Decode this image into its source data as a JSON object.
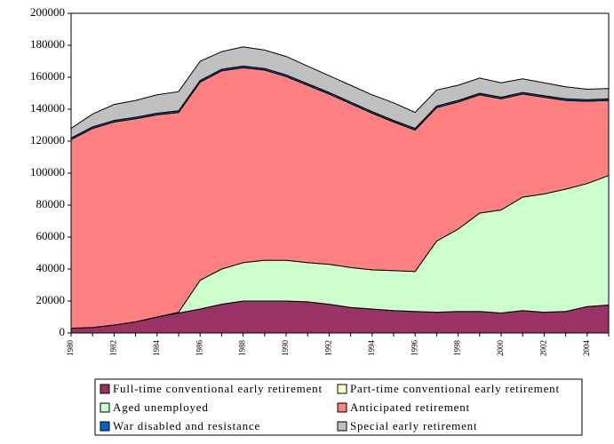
{
  "chart_data": {
    "type": "stacked_area",
    "categories": [
      "1980",
      null,
      "1982",
      null,
      "1984",
      null,
      "1986",
      null,
      "1988",
      null,
      "1990",
      null,
      "1992",
      null,
      "1994",
      null,
      "1996",
      null,
      "1998",
      null,
      "2000",
      null,
      "2002",
      null,
      "2004",
      null
    ],
    "series": [
      {
        "name": "Full-time conventional early retirement",
        "color": "#993366",
        "values": [
          3000,
          3500,
          5000,
          7000,
          10000,
          12500,
          15000,
          18000,
          20000,
          20000,
          20000,
          19500,
          18000,
          16000,
          15000,
          14000,
          13500,
          13000,
          13500,
          13500,
          12500,
          14000,
          13000,
          13500,
          16500,
          17500
        ]
      },
      {
        "name": "Part-time conventional early retirement",
        "color": "#ffffcc",
        "values": [
          0,
          0,
          0,
          0,
          0,
          0,
          0,
          0,
          0,
          0,
          0,
          0,
          0,
          0,
          0,
          0,
          0,
          0,
          0,
          0,
          0,
          0,
          0,
          0,
          0,
          0
        ]
      },
      {
        "name": "Aged unemployed",
        "color": "#ccffcc",
        "values": [
          0,
          0,
          0,
          0,
          0,
          500,
          18000,
          22000,
          24000,
          25500,
          25500,
          24500,
          25000,
          25000,
          24500,
          25000,
          25000,
          44500,
          51500,
          61500,
          64500,
          71000,
          74000,
          76500,
          77000,
          81000
        ]
      },
      {
        "name": "Anticipated retirement",
        "color": "#ff8080",
        "values": [
          118000,
          124500,
          127000,
          127000,
          126500,
          125000,
          124000,
          124000,
          122000,
          119000,
          115000,
          111000,
          106500,
          102500,
          98000,
          93000,
          88500,
          83500,
          79500,
          74000,
          69500,
          64500,
          60500,
          55500,
          51500,
          47000
        ]
      },
      {
        "name": "War disabled and resistance",
        "color": "#0066cc",
        "values": [
          1000,
          1000,
          1000,
          1000,
          1000,
          1000,
          1000,
          1000,
          1000,
          1000,
          1000,
          1000,
          1000,
          1000,
          1000,
          1000,
          1000,
          1000,
          1000,
          1000,
          1000,
          1000,
          1000,
          1000,
          1000,
          1000
        ]
      },
      {
        "name": "Special early retirement",
        "color": "#c0c0c0",
        "values": [
          6000,
          8000,
          10000,
          10500,
          11500,
          12000,
          12000,
          11000,
          12000,
          11500,
          11500,
          11000,
          10500,
          10500,
          10500,
          11000,
          10000,
          10000,
          9500,
          9500,
          9000,
          8500,
          8000,
          7500,
          6500,
          6500
        ]
      }
    ],
    "ylim": [
      0,
      200000
    ],
    "yticks": [
      0,
      20000,
      40000,
      60000,
      80000,
      100000,
      120000,
      140000,
      160000,
      180000,
      200000
    ],
    "grid": false
  }
}
